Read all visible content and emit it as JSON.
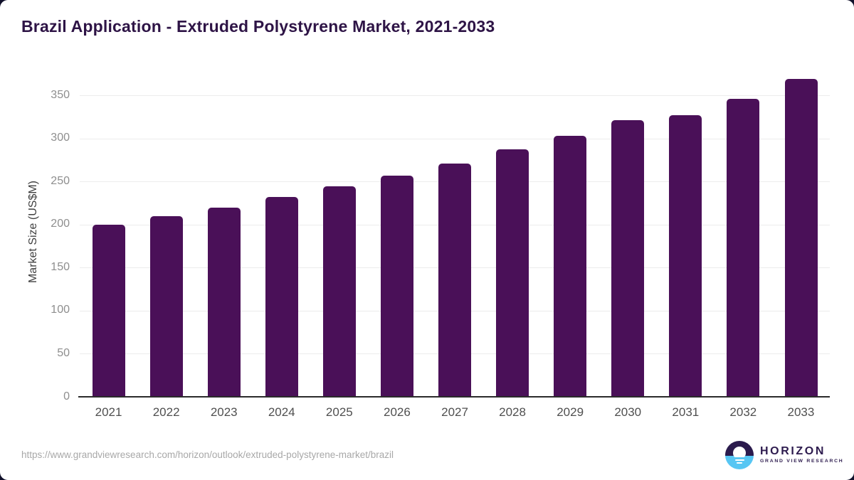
{
  "chart_data": {
    "type": "bar",
    "title": "Brazil Application - Extruded Polystyrene Market, 2021-2033",
    "categories": [
      "2021",
      "2022",
      "2023",
      "2024",
      "2025",
      "2026",
      "2027",
      "2028",
      "2029",
      "2030",
      "2031",
      "2032",
      "2033"
    ],
    "values": [
      200,
      210,
      220,
      232,
      244,
      257,
      271,
      287,
      303,
      321,
      327,
      346,
      369
    ],
    "xlabel": "",
    "ylabel": "Market Size (US$M)",
    "ylim": [
      0,
      370
    ],
    "yticks": [
      0,
      50,
      100,
      150,
      200,
      250,
      300,
      350
    ],
    "grid": "horizontal",
    "legend": "none",
    "bar_color": "#4a1058"
  },
  "colors": {
    "title_text": "#2e1446",
    "axis_line": "#2b2b2b",
    "gridline": "#ececec",
    "ytick_text": "#8e8e8e",
    "xtick_text": "#4f4f4f",
    "url_text": "#a8a8a8",
    "logo_dark": "#2b1b4d",
    "logo_blue": "#57c6f3"
  },
  "footer": {
    "source_url": "https://www.grandviewresearch.com/horizon/outlook/extruded-polystyrene-market/brazil",
    "logo": {
      "icon": "horizon-sunrise-icon",
      "name": "HORIZON",
      "subtitle": "GRAND VIEW RESEARCH"
    }
  }
}
